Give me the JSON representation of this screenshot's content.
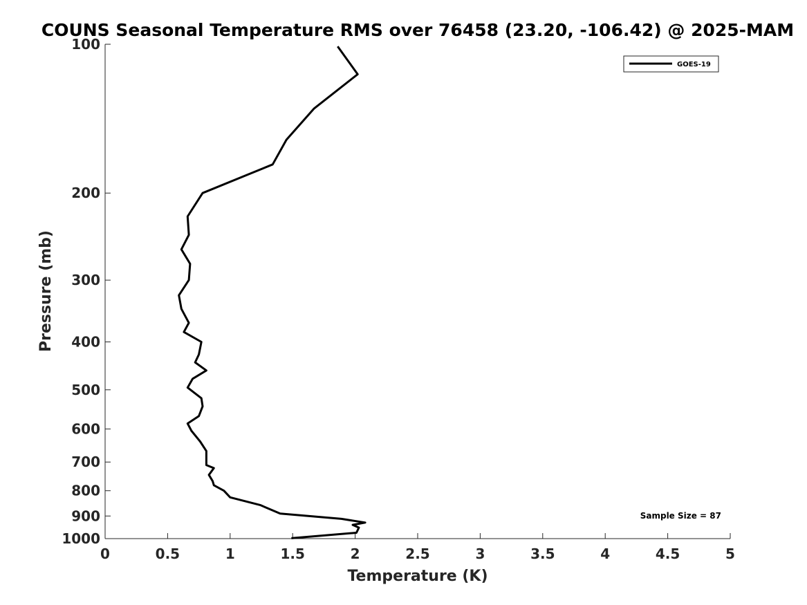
{
  "chart_data": {
    "type": "line",
    "title": "COUNS Seasonal Temperature RMS over 76458 (23.20, -106.42) @ 2025-MAM",
    "xlabel": "Temperature (K)",
    "ylabel": "Pressure (mb)",
    "xlim": [
      0,
      5
    ],
    "ylim": [
      100,
      1000
    ],
    "y_scale": "log",
    "y_reversed": true,
    "grid": false,
    "xticks": [
      0,
      0.5,
      1,
      1.5,
      2,
      2.5,
      3,
      3.5,
      4,
      4.5,
      5
    ],
    "xtick_labels": [
      "0",
      "0.5",
      "1",
      "1.5",
      "2",
      "2.5",
      "3",
      "3.5",
      "4",
      "4.5",
      "5"
    ],
    "yticks": [
      100,
      200,
      300,
      400,
      500,
      600,
      700,
      800,
      900,
      1000
    ],
    "ytick_labels": [
      "100",
      "200",
      "300",
      "400",
      "500",
      "600",
      "700",
      "800",
      "900",
      "1000"
    ],
    "legend_position": "top-right",
    "series": [
      {
        "name": "GOES-19",
        "color": "#000000",
        "x": [
          1.86,
          2.02,
          1.67,
          1.45,
          1.34,
          0.78,
          0.66,
          0.67,
          0.61,
          0.68,
          0.67,
          0.59,
          0.61,
          0.67,
          0.63,
          0.77,
          0.75,
          0.72,
          0.81,
          0.7,
          0.66,
          0.77,
          0.78,
          0.75,
          0.66,
          0.69,
          0.76,
          0.81,
          0.81,
          0.81,
          0.87,
          0.83,
          0.86,
          0.87,
          0.95,
          1.0,
          1.24,
          1.4,
          1.89,
          2.08,
          1.98,
          2.03,
          2.01,
          1.49
        ],
        "y": [
          101,
          115,
          135,
          156,
          175,
          200,
          223,
          243,
          260,
          278,
          300,
          322,
          343,
          366,
          382,
          400,
          424,
          440,
          457,
          475,
          495,
          520,
          540,
          565,
          585,
          605,
          636,
          665,
          680,
          710,
          720,
          743,
          765,
          780,
          800,
          825,
          855,
          890,
          912,
          928,
          938,
          950,
          973,
          998
        ]
      }
    ],
    "annotation": "Sample Size = 87"
  }
}
